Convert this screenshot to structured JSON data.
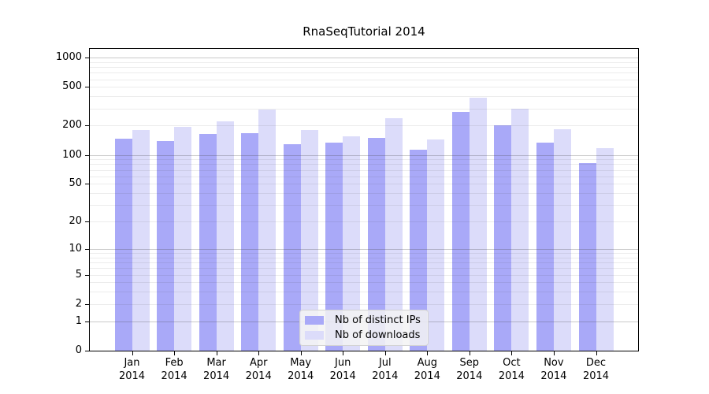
{
  "title": "RnaSeqTutorial 2014",
  "chart_data": {
    "type": "bar",
    "title": "RnaSeqTutorial 2014",
    "categories": [
      "Jan 2014",
      "Feb 2014",
      "Mar 2014",
      "Apr 2014",
      "May 2014",
      "Jun 2014",
      "Jul 2014",
      "Aug 2014",
      "Sep 2014",
      "Oct 2014",
      "Nov 2014",
      "Dec 2014"
    ],
    "x_tick_months": [
      "Jan",
      "Feb",
      "Mar",
      "Apr",
      "May",
      "Jun",
      "Jul",
      "Aug",
      "Sep",
      "Oct",
      "Nov",
      "Dec"
    ],
    "x_tick_year": "2014",
    "series": [
      {
        "name": "Nb of distinct IPs",
        "key": "distinct-ips",
        "color": "#a9a9f8",
        "values": [
          147,
          139,
          165,
          169,
          130,
          134,
          149,
          113,
          275,
          201,
          134,
          82
        ]
      },
      {
        "name": "Nb of downloads",
        "key": "downloads",
        "color": "#dcdcfa",
        "values": [
          180,
          195,
          221,
          293,
          180,
          155,
          240,
          145,
          387,
          298,
          183,
          117
        ]
      }
    ],
    "xlabel": "",
    "ylabel": "",
    "y_scale": "log1p",
    "ylim": [
      0,
      1250
    ],
    "y_ticks": [
      0,
      1,
      2,
      5,
      10,
      20,
      50,
      100,
      200,
      500,
      1000
    ],
    "y_major_gridlines": [
      1,
      10,
      100,
      1000
    ],
    "y_minor_gridlines": [
      2,
      3,
      4,
      5,
      6,
      7,
      8,
      9,
      20,
      30,
      40,
      50,
      60,
      70,
      80,
      90,
      200,
      300,
      400,
      500,
      600,
      700,
      800,
      900
    ],
    "grid": true,
    "legend_position": "lower center"
  },
  "colors": {
    "distinct_ips_bar": "#a9a9f8",
    "downloads_bar": "#dcdcfa",
    "axis": "#000000",
    "major_gridline": "#c9c9c9",
    "minor_gridline": "#ececec",
    "legend_background": "#f3f3f3"
  }
}
